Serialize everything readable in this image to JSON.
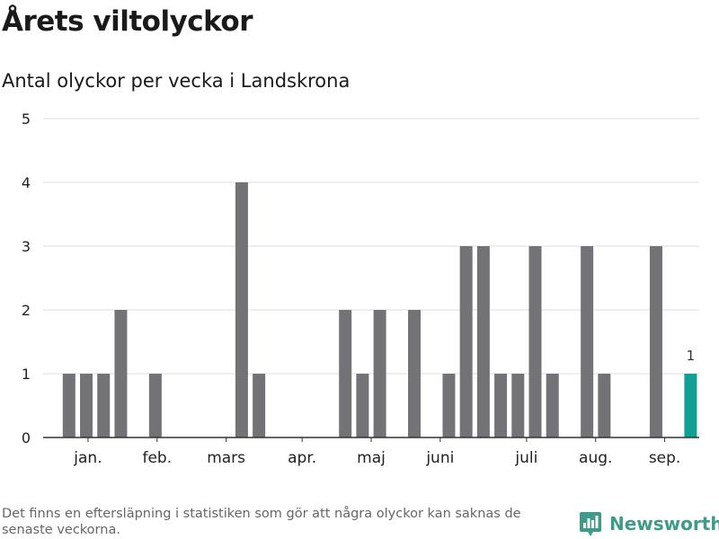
{
  "title": "Årets viltolyckor",
  "subtitle": "Antal olyckor per vecka i Landskrona",
  "footnote": "Det finns en eftersläpning i statistiken som gör att några olyckor kan saknas de senaste veckorna.",
  "brand": {
    "name": "Newsworthy",
    "icon": "newsworthy-logo-icon"
  },
  "colors": {
    "bar": "#737277",
    "highlight": "#12a094",
    "grid": "#dddddd",
    "axis": "#333333"
  },
  "chart_data": {
    "type": "bar",
    "title": "Årets viltolyckor",
    "subtitle": "Antal olyckor per vecka i Landskrona",
    "xlabel": "",
    "ylabel": "",
    "weeks": [
      1,
      2,
      3,
      4,
      5,
      6,
      7,
      8,
      9,
      10,
      11,
      12,
      13,
      14,
      15,
      16,
      17,
      18,
      19,
      20,
      21,
      22,
      23,
      24,
      25,
      26,
      27,
      28,
      29,
      30,
      31,
      32,
      33,
      34,
      35,
      36,
      37,
      38
    ],
    "values": [
      0,
      1,
      1,
      1,
      2,
      0,
      1,
      0,
      0,
      0,
      0,
      4,
      1,
      0,
      0,
      0,
      0,
      2,
      1,
      2,
      0,
      2,
      0,
      1,
      3,
      3,
      1,
      1,
      3,
      1,
      0,
      3,
      1,
      0,
      0,
      3,
      0,
      1
    ],
    "highlight_index": 37,
    "highlight_label": "1",
    "ylim": [
      0,
      5
    ],
    "yticks": [
      0,
      1,
      2,
      3,
      4,
      5
    ],
    "month_ticks": [
      {
        "label": "jan.",
        "pos": 2.6
      },
      {
        "label": "feb.",
        "pos": 6.6
      },
      {
        "label": "mars",
        "pos": 10.6
      },
      {
        "label": "apr.",
        "pos": 15.0
      },
      {
        "label": "maj",
        "pos": 19.0
      },
      {
        "label": "juni",
        "pos": 23.0
      },
      {
        "label": "juli",
        "pos": 28.0
      },
      {
        "label": "aug.",
        "pos": 32.0
      },
      {
        "label": "sep.",
        "pos": 36.0
      }
    ],
    "grid": true,
    "legend": "none"
  }
}
